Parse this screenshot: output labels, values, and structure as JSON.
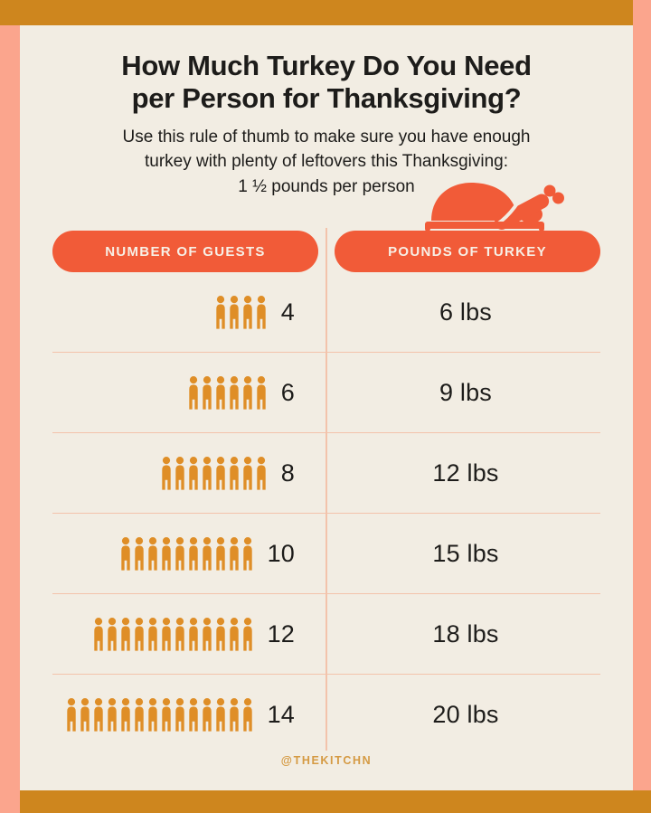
{
  "colors": {
    "frame_pink": "#FBA58D",
    "bar_gold": "#CE861E",
    "card_cream": "#F2EDE3",
    "accent_red": "#F15B38",
    "icon_gold": "#DF8E27",
    "divider_pink": "#F3C3AB",
    "text_black": "#1D1C1A",
    "footer_gold": "#D59A43",
    "pill_text": "#F7F0E6"
  },
  "header": {
    "title_line1": "How Much Turkey Do You Need",
    "title_line2": "per Person for Thanksgiving?",
    "subtitle_line1": "Use this rule of thumb to make sure you have enough",
    "subtitle_line2": "turkey with plenty of leftovers this Thanksgiving:",
    "subtitle_line3": "1 ½ pounds per person"
  },
  "table": {
    "col1_header": "NUMBER OF GUESTS",
    "col2_header": "POUNDS OF TURKEY",
    "rows": [
      {
        "guests": "4",
        "icon_count": 4,
        "pounds": "6 lbs"
      },
      {
        "guests": "6",
        "icon_count": 6,
        "pounds": "9 lbs"
      },
      {
        "guests": "8",
        "icon_count": 8,
        "pounds": "12 lbs"
      },
      {
        "guests": "10",
        "icon_count": 10,
        "pounds": "15 lbs"
      },
      {
        "guests": "12",
        "icon_count": 12,
        "pounds": "18 lbs"
      },
      {
        "guests": "14",
        "icon_count": 14,
        "pounds": "20 lbs"
      }
    ]
  },
  "footer": {
    "handle": "@THEKITCHN"
  },
  "chart_data": {
    "type": "table",
    "title": "How Much Turkey Do You Need per Person for Thanksgiving?",
    "subtitle": "Use this rule of thumb to make sure you have enough turkey with plenty of leftovers this Thanksgiving: 1 ½ pounds per person",
    "rule_of_thumb_lbs_per_person": 1.5,
    "columns": [
      "Number of Guests",
      "Pounds of Turkey"
    ],
    "guests": [
      4,
      6,
      8,
      10,
      12,
      14
    ],
    "pounds": [
      6,
      9,
      12,
      15,
      18,
      20
    ],
    "rows": [
      [
        4,
        "6 lbs"
      ],
      [
        6,
        "9 lbs"
      ],
      [
        8,
        "12 lbs"
      ],
      [
        10,
        "15 lbs"
      ],
      [
        12,
        "18 lbs"
      ],
      [
        14,
        "20 lbs"
      ]
    ],
    "source": "@THEKITCHN"
  }
}
